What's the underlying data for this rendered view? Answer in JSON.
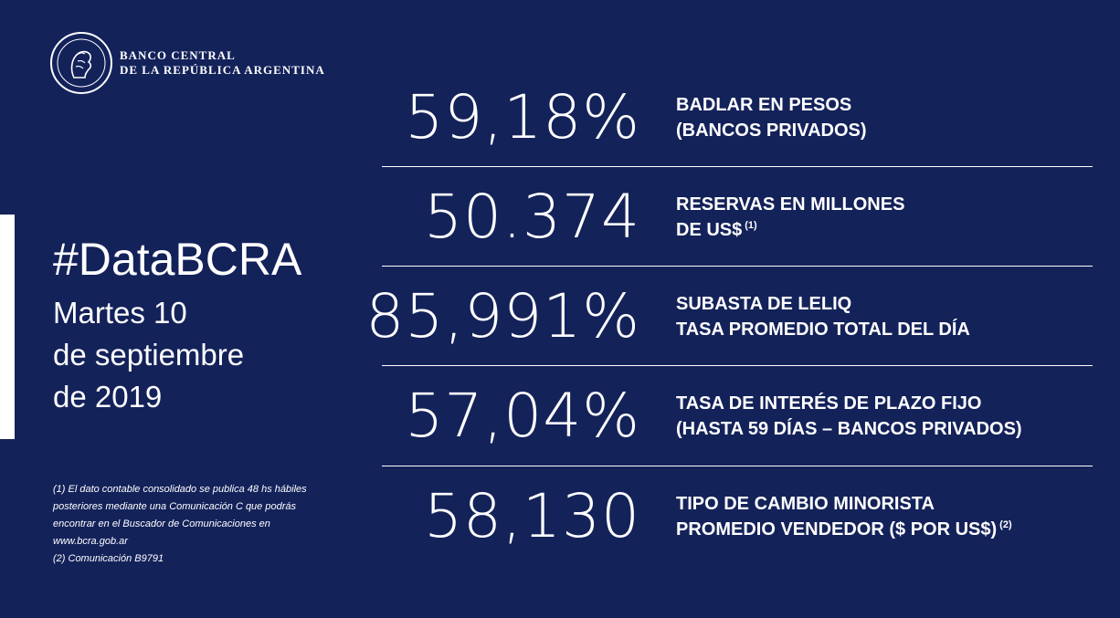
{
  "bank": {
    "name_line1": "BANCO CENTRAL",
    "name_line2": "DE LA REPÚBLICA ARGENTINA"
  },
  "hashtag": "#DataBCRA",
  "date": {
    "line1": "Martes 10",
    "line2": "de septiembre",
    "line3": "de 2019"
  },
  "footnotes": "(1) El dato contable consolidado se publica 48 hs hábiles\nposteriores mediante una Comunicación C que podrás\nencontrar en el Buscador de Comunicaciones en\nwww.bcra.gob.ar\n(2) Comunicación B9791",
  "indicators": [
    {
      "value": "59,18%",
      "line1": "BADLAR EN PESOS",
      "line2": "(BANCOS PRIVADOS)",
      "note": ""
    },
    {
      "value": "50.374",
      "line1": "RESERVAS  EN MILLONES",
      "line2": "DE US$",
      "note": "(1)"
    },
    {
      "value": "85,991%",
      "line1": "SUBASTA DE LELIQ",
      "line2": "TASA PROMEDIO TOTAL DEL DÍA",
      "note": ""
    },
    {
      "value": "57,04%",
      "line1": "TASA DE INTERÉS DE PLAZO FIJO",
      "line2": "(HASTA 59 DÍAS – BANCOS PRIVADOS)",
      "note": ""
    },
    {
      "value": "58,130",
      "line1": "TIPO DE CAMBIO MINORISTA",
      "line2": "PROMEDIO VENDEDOR ($ POR US$)",
      "note": "(2)"
    }
  ],
  "colors": {
    "background": "#14225a",
    "text": "#ffffff"
  },
  "icons": {
    "logo": "bcra-seal-icon"
  }
}
